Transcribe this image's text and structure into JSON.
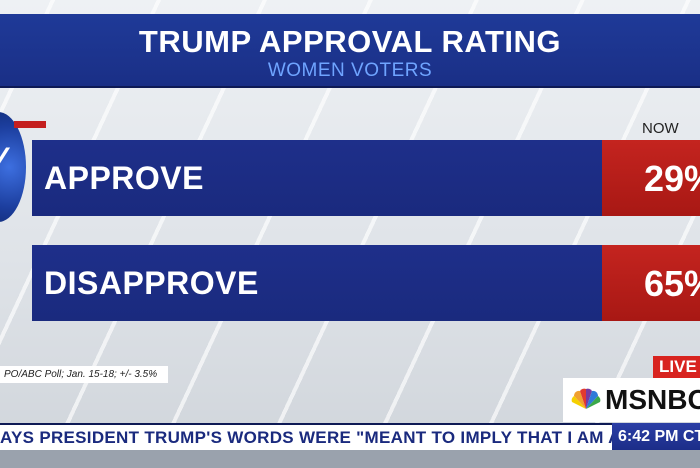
{
  "header": {
    "title": "TRUMP APPROVAL RATING",
    "subtitle": "WOMEN VOTERS"
  },
  "now_label": "NOW",
  "rows": [
    {
      "label": "APPROVE",
      "value": "29%"
    },
    {
      "label": "DISAPPROVE",
      "value": "65%"
    }
  ],
  "source": "PO/ABC Poll; Jan. 15-18; +/- 3.5%",
  "live_badge": "LIVE",
  "network": "MSNBC",
  "ticker": "AYS PRESIDENT TRUMP'S WORDS WERE \"MEANT TO IMPLY THAT I AM A LI",
  "time": "6:42 PM CT",
  "colors": {
    "bar_blue": "#1e2f8a",
    "value_red": "#c4241f",
    "header_blue": "#1f3a98",
    "subtitle_blue": "#6fa4ff"
  }
}
